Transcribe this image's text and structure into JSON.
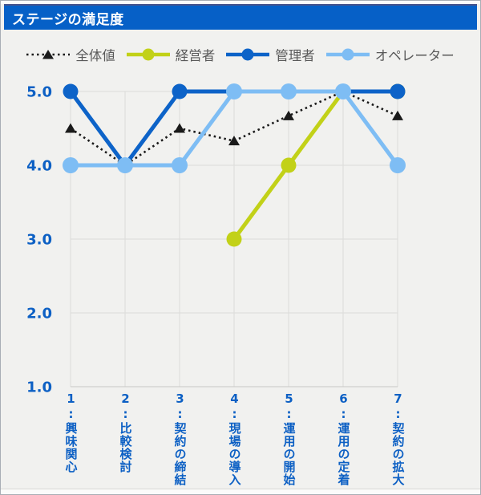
{
  "header": {
    "title": "ステージの満足度",
    "bar_color": "#0660C7",
    "bar_border_color": "#46538C",
    "text_color": "#FFFFFF"
  },
  "colors": {
    "background": "#F1F1EF",
    "panel_border": "#A8AEB5",
    "grid": "#DCDCDA",
    "axis_line": "#C6C6C4",
    "tick_label": "#0D60C4",
    "legend_text": "#595959"
  },
  "chart_data": {
    "type": "line",
    "title": "ステージの満足度",
    "categories": [
      "1:興味関心",
      "2:比較検討",
      "3:契約の締結",
      "4:現場の導入",
      "5:運用の開始",
      "6:運用の定着",
      "7:契約の拡大"
    ],
    "y_tick_labels": [
      "5.0",
      "4.0",
      "3.0",
      "2.0",
      "1.0"
    ],
    "ylim": [
      1,
      5
    ],
    "grid": true,
    "legend_position": "top",
    "series": [
      {
        "name": "全体値",
        "color": "#1A1A1A",
        "line_style": "dotted",
        "marker": "triangle",
        "values": [
          4.5,
          4.0,
          4.5,
          4.33,
          4.67,
          5.0,
          4.67
        ]
      },
      {
        "name": "経営者",
        "color": "#C2D118",
        "line_style": "solid",
        "marker": "circle",
        "values": [
          null,
          null,
          null,
          3.0,
          4.0,
          5.0,
          5.0
        ]
      },
      {
        "name": "管理者",
        "color": "#0D63C8",
        "line_style": "solid",
        "marker": "circle",
        "values": [
          5.0,
          4.0,
          5.0,
          5.0,
          5.0,
          5.0,
          5.0
        ]
      },
      {
        "name": "オペレーター",
        "color": "#7EBDF4",
        "line_style": "solid",
        "marker": "circle",
        "values": [
          4.0,
          4.0,
          4.0,
          5.0,
          5.0,
          5.0,
          4.0
        ]
      }
    ]
  }
}
